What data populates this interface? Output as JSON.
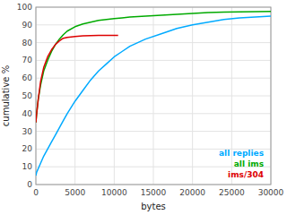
{
  "chart_data": {
    "type": "line",
    "xlabel": "bytes",
    "ylabel": "cumulative %",
    "xlim": [
      0,
      30000
    ],
    "ylim": [
      0,
      100
    ],
    "xticks": [
      0,
      5000,
      10000,
      15000,
      20000,
      25000,
      30000
    ],
    "yticks": [
      0,
      10,
      20,
      30,
      40,
      50,
      60,
      70,
      80,
      90,
      100
    ],
    "grid": true,
    "legend": "lower right",
    "series": [
      {
        "name": "all replies",
        "color": "#00aaff",
        "x": [
          0,
          100,
          300,
          600,
          1000,
          1500,
          2000,
          2500,
          3000,
          3500,
          4000,
          5000,
          6000,
          7000,
          8000,
          9000,
          10000,
          11000,
          12000,
          14000,
          16000,
          18000,
          20000,
          22000,
          24000,
          26000,
          28000,
          30000
        ],
        "values": [
          5,
          7,
          9,
          12,
          16,
          20,
          24,
          28,
          32,
          36,
          40,
          47,
          53,
          59,
          64,
          68,
          72,
          75,
          78,
          82,
          85,
          88,
          90,
          91.5,
          93,
          94,
          94.5,
          95
        ]
      },
      {
        "name": "all ims",
        "color": "#00aa00",
        "x": [
          0,
          100,
          300,
          600,
          1000,
          1500,
          2000,
          2500,
          3000,
          3500,
          4000,
          5000,
          6000,
          7000,
          8000,
          9000,
          10000,
          11000,
          12000,
          14000,
          16000,
          18000,
          20000,
          22000,
          24000,
          26000,
          28000,
          30000
        ],
        "values": [
          35,
          40,
          48,
          56,
          64,
          70,
          75,
          79,
          82,
          84.5,
          86.5,
          89,
          90.5,
          91.5,
          92.5,
          93,
          93.5,
          94,
          94.5,
          95,
          95.5,
          96,
          96.5,
          97,
          97.2,
          97.4,
          97.5,
          97.6
        ]
      },
      {
        "name": "ims/304",
        "color": "#dd0000",
        "x": [
          0,
          100,
          300,
          600,
          1000,
          1500,
          2000,
          2500,
          3000,
          3500,
          4000,
          5000,
          6000,
          7000,
          8000,
          9000,
          10000,
          10500
        ],
        "values": [
          35,
          40,
          48,
          58,
          66,
          72,
          76,
          79,
          81,
          82.5,
          83,
          83.5,
          83.8,
          84,
          84.1,
          84.1,
          84.1,
          84.1
        ]
      }
    ]
  }
}
